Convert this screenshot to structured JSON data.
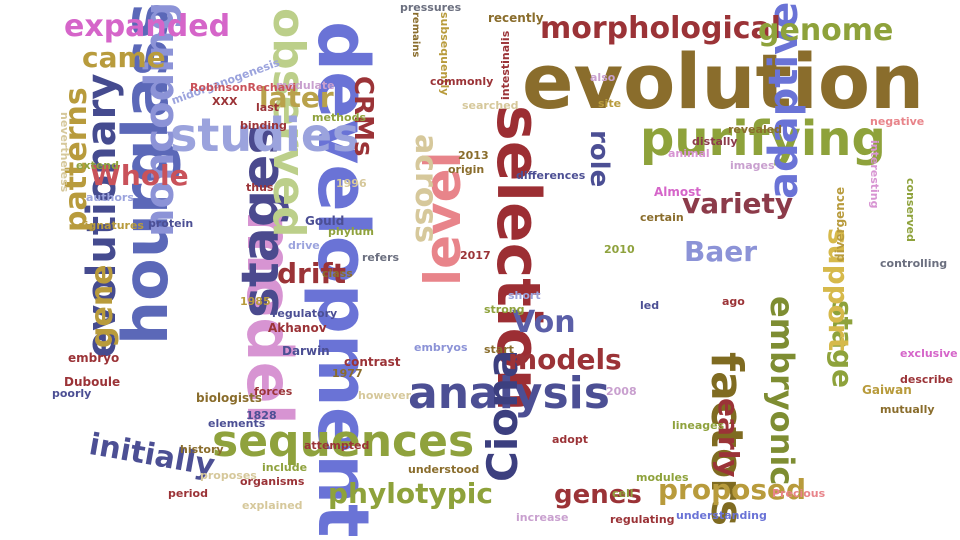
{
  "words": [
    {
      "text": "development",
      "color": "#6a73d6"
    },
    {
      "text": "evolution",
      "color": "#8a6d2c"
    },
    {
      "text": "model",
      "color": "#d794d2"
    },
    {
      "text": "selection",
      "color": "#9c2e33"
    },
    {
      "text": "hourglass",
      "color": "#5b68b8"
    },
    {
      "text": "level",
      "color": "#e8848a"
    },
    {
      "text": "stages",
      "color": "#4b4a8e"
    },
    {
      "text": "sequences",
      "color": "#8fa23d"
    },
    {
      "text": "observed",
      "color": "#bccf8a"
    },
    {
      "text": "purifying",
      "color": "#8ea23b"
    },
    {
      "text": "studies",
      "color": "#9ba3dd"
    },
    {
      "text": "analysis",
      "color": "#4c4f94"
    },
    {
      "text": "factors",
      "color": "#7f6b21"
    },
    {
      "text": "Ciona",
      "color": "#3c3f7f"
    },
    {
      "text": "noncoding",
      "color": "#8c93d7"
    },
    {
      "text": "evolutionary",
      "color": "#454b8f"
    },
    {
      "text": "adaptive",
      "color": "#6a73d6"
    },
    {
      "text": "embryonic",
      "color": "#7e8d32"
    },
    {
      "text": "morphological",
      "color": "#9b3337"
    },
    {
      "text": "genome",
      "color": "#8ea23b"
    },
    {
      "text": "expanded",
      "color": "#d565c9"
    },
    {
      "text": "came",
      "color": "#b89b3c"
    },
    {
      "text": "later",
      "color": "#b9a24b"
    },
    {
      "text": "across",
      "color": "#d6c89b"
    },
    {
      "text": "CRMs",
      "color": "#9b3337"
    },
    {
      "text": "Whole",
      "color": "#c9525a"
    },
    {
      "text": "patterns",
      "color": "#b89b3c"
    },
    {
      "text": "gene",
      "color": "#b89b3c"
    },
    {
      "text": "drift",
      "color": "#9b3337"
    },
    {
      "text": "variety",
      "color": "#8c3b4a"
    },
    {
      "text": "role",
      "color": "#4c4f94"
    },
    {
      "text": "Baer",
      "color": "#8c93d7"
    },
    {
      "text": "Von",
      "color": "#5b5fa8"
    },
    {
      "text": "models",
      "color": "#9b3337"
    },
    {
      "text": "stage",
      "color": "#8ea23b"
    },
    {
      "text": "support",
      "color": "#d6b94b"
    },
    {
      "text": "early",
      "color": "#9b3337"
    },
    {
      "text": "initially",
      "color": "#4c4f94"
    },
    {
      "text": "phylotypic",
      "color": "#8ea23b"
    },
    {
      "text": "genes",
      "color": "#9b3337"
    },
    {
      "text": "proposed",
      "color": "#b89b3c"
    },
    {
      "text": "recently",
      "color": "#8a6d2c"
    },
    {
      "text": "pressures",
      "color": "#6b6f7f"
    },
    {
      "text": "intestinalis",
      "color": "#9b3337"
    },
    {
      "text": "remains",
      "color": "#8a6d2c"
    },
    {
      "text": "subsequently",
      "color": "#b89b3c"
    },
    {
      "text": "modulate",
      "color": "#c9a0cf"
    },
    {
      "text": "nevertheless",
      "color": "#d6c89b"
    },
    {
      "text": "midorganogenesis",
      "color": "#9ba3dd"
    },
    {
      "text": "RobinsonRechavi",
      "color": "#c9525a"
    },
    {
      "text": "binding",
      "color": "#9b3337"
    },
    {
      "text": "methods",
      "color": "#8fa23d"
    },
    {
      "text": "Almost",
      "color": "#d565c9"
    },
    {
      "text": "images",
      "color": "#c9a0cf"
    },
    {
      "text": "revealed",
      "color": "#8a6d2c"
    },
    {
      "text": "distally",
      "color": "#8c3b4a"
    },
    {
      "text": "animal",
      "color": "#d794d2"
    },
    {
      "text": "negative",
      "color": "#e8848a"
    },
    {
      "text": "interesting",
      "color": "#d794d2"
    },
    {
      "text": "conserved",
      "color": "#8ea23b"
    },
    {
      "text": "divergence",
      "color": "#b89b3c"
    },
    {
      "text": "Darwin",
      "color": "#4c4f94"
    },
    {
      "text": "Akhanov",
      "color": "#9b3337"
    },
    {
      "text": "regulatory",
      "color": "#4c4f94"
    },
    {
      "text": "embryo",
      "color": "#9b3337"
    },
    {
      "text": "poorly",
      "color": "#4c4f94"
    },
    {
      "text": "biologists",
      "color": "#8a6d2c"
    },
    {
      "text": "forces",
      "color": "#9b3337"
    },
    {
      "text": "however",
      "color": "#d6c89b"
    },
    {
      "text": "understood",
      "color": "#8a6d2c"
    },
    {
      "text": "organisms",
      "color": "#9b3337"
    },
    {
      "text": "explained",
      "color": "#d6c89b"
    },
    {
      "text": "include",
      "color": "#8fa23d"
    },
    {
      "text": "increase",
      "color": "#c9a0cf"
    },
    {
      "text": "regulating",
      "color": "#9b3337"
    },
    {
      "text": "understanding",
      "color": "#6a73d6"
    },
    {
      "text": "Gaiwan",
      "color": "#b89b3c"
    },
    {
      "text": "modules",
      "color": "#8ea23b"
    },
    {
      "text": "describe",
      "color": "#9b3337"
    },
    {
      "text": "mutually",
      "color": "#8a6d2c"
    },
    {
      "text": "exclusive",
      "color": "#d565c9"
    },
    {
      "text": "controlling",
      "color": "#6b6f7f"
    },
    {
      "text": "Precious",
      "color": "#e8848a"
    },
    {
      "text": "lineages",
      "color": "#8fa23d"
    },
    {
      "text": "contrast",
      "color": "#9b3337"
    },
    {
      "text": "embryos",
      "color": "#8c93d7"
    },
    {
      "text": "attempted",
      "color": "#9b3337"
    },
    {
      "text": "Gould",
      "color": "#4c4f94"
    },
    {
      "text": "Duboule",
      "color": "#9b3337"
    },
    {
      "text": "class",
      "color": "#8a6d2c"
    },
    {
      "text": "refers",
      "color": "#6b6f7f"
    },
    {
      "text": "drive",
      "color": "#9ba3dd"
    },
    {
      "text": "phylum",
      "color": "#8fa23d"
    },
    {
      "text": "thus",
      "color": "#9b3337"
    },
    {
      "text": "certain",
      "color": "#8a6d2c"
    },
    {
      "text": "signatures",
      "color": "#b89b3c"
    },
    {
      "text": "authors",
      "color": "#9ba3dd"
    },
    {
      "text": "protein",
      "color": "#4c4f94"
    },
    {
      "text": "extend",
      "color": "#8fa23d"
    },
    {
      "text": "commonly",
      "color": "#9b3337"
    },
    {
      "text": "searched",
      "color": "#d6c89b"
    },
    {
      "text": "origin",
      "color": "#8a6d2c"
    },
    {
      "text": "differences",
      "color": "#4c4f94"
    },
    {
      "text": "last",
      "color": "#9b3337"
    },
    {
      "text": "site",
      "color": "#b89b3c"
    },
    {
      "text": "also",
      "color": "#c9a0cf"
    },
    {
      "text": "ago",
      "color": "#9b3337"
    },
    {
      "text": "led",
      "color": "#4c4f94"
    },
    {
      "text": "start",
      "color": "#8a6d2c"
    },
    {
      "text": "short",
      "color": "#9ba3dd"
    },
    {
      "text": "strong",
      "color": "#8ea23b"
    },
    {
      "text": "period",
      "color": "#9b3337"
    },
    {
      "text": "history",
      "color": "#8a6d2c"
    },
    {
      "text": "elements",
      "color": "#4c4f94"
    },
    {
      "text": "proposes",
      "color": "#d6c89b"
    },
    {
      "text": "cell",
      "color": "#8fa23d"
    },
    {
      "text": "adopt",
      "color": "#9b3337"
    },
    {
      "text": "2013",
      "color": "#8a6d2c"
    },
    {
      "text": "1985",
      "color": "#b89b3c"
    },
    {
      "text": "1828",
      "color": "#4c4f94"
    },
    {
      "text": "2010",
      "color": "#8fa23d"
    },
    {
      "text": "1996",
      "color": "#d6c89b"
    },
    {
      "text": "2017",
      "color": "#9b3337"
    },
    {
      "text": "1977",
      "color": "#8a6d2c"
    },
    {
      "text": "2008",
      "color": "#c9a0cf"
    },
    {
      "text": "XXX",
      "color": "#9b3337"
    }
  ]
}
